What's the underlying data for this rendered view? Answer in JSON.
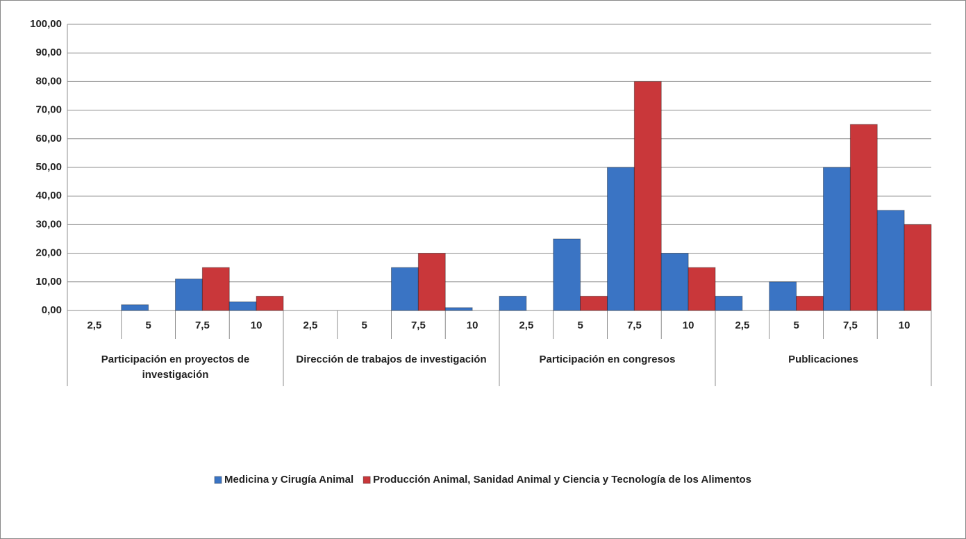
{
  "chart_data": {
    "type": "bar",
    "categories": [
      "2,5",
      "5",
      "7,5",
      "10",
      "2,5",
      "5",
      "7,5",
      "10",
      "2,5",
      "5",
      "7,5",
      "10",
      "2,5",
      "5",
      "7,5",
      "10"
    ],
    "category_groups": [
      "Participación en proyectos de investigación",
      "Dirección de trabajos de investigación",
      "Participación en congresos",
      "Publicaciones"
    ],
    "series": [
      {
        "name": "Medicina y Cirugía Animal",
        "color": "#3a74c4",
        "values": [
          0,
          2,
          11,
          3,
          0,
          0,
          15,
          1,
          5,
          25,
          50,
          20,
          5,
          10,
          50,
          35
        ]
      },
      {
        "name": "Producción Animal, Sanidad Animal y Ciencia y Tecnología de los Alimentos",
        "color": "#c9373a",
        "values": [
          0,
          0,
          15,
          5,
          0,
          0,
          20,
          0,
          0,
          5,
          80,
          15,
          0,
          5,
          65,
          30
        ]
      }
    ],
    "ylim": [
      0,
      100
    ],
    "yticks": [
      {
        "value": 0,
        "label": "0,00"
      },
      {
        "value": 10,
        "label": "10,00"
      },
      {
        "value": 20,
        "label": "20,00"
      },
      {
        "value": 30,
        "label": "30,00"
      },
      {
        "value": 40,
        "label": "40,00"
      },
      {
        "value": 50,
        "label": "50,00"
      },
      {
        "value": 60,
        "label": "60,00"
      },
      {
        "value": 70,
        "label": "70,00"
      },
      {
        "value": 80,
        "label": "80,00"
      },
      {
        "value": 90,
        "label": "90,00"
      },
      {
        "value": 100,
        "label": "100,00"
      }
    ],
    "grid": true,
    "legend": "bottom"
  }
}
